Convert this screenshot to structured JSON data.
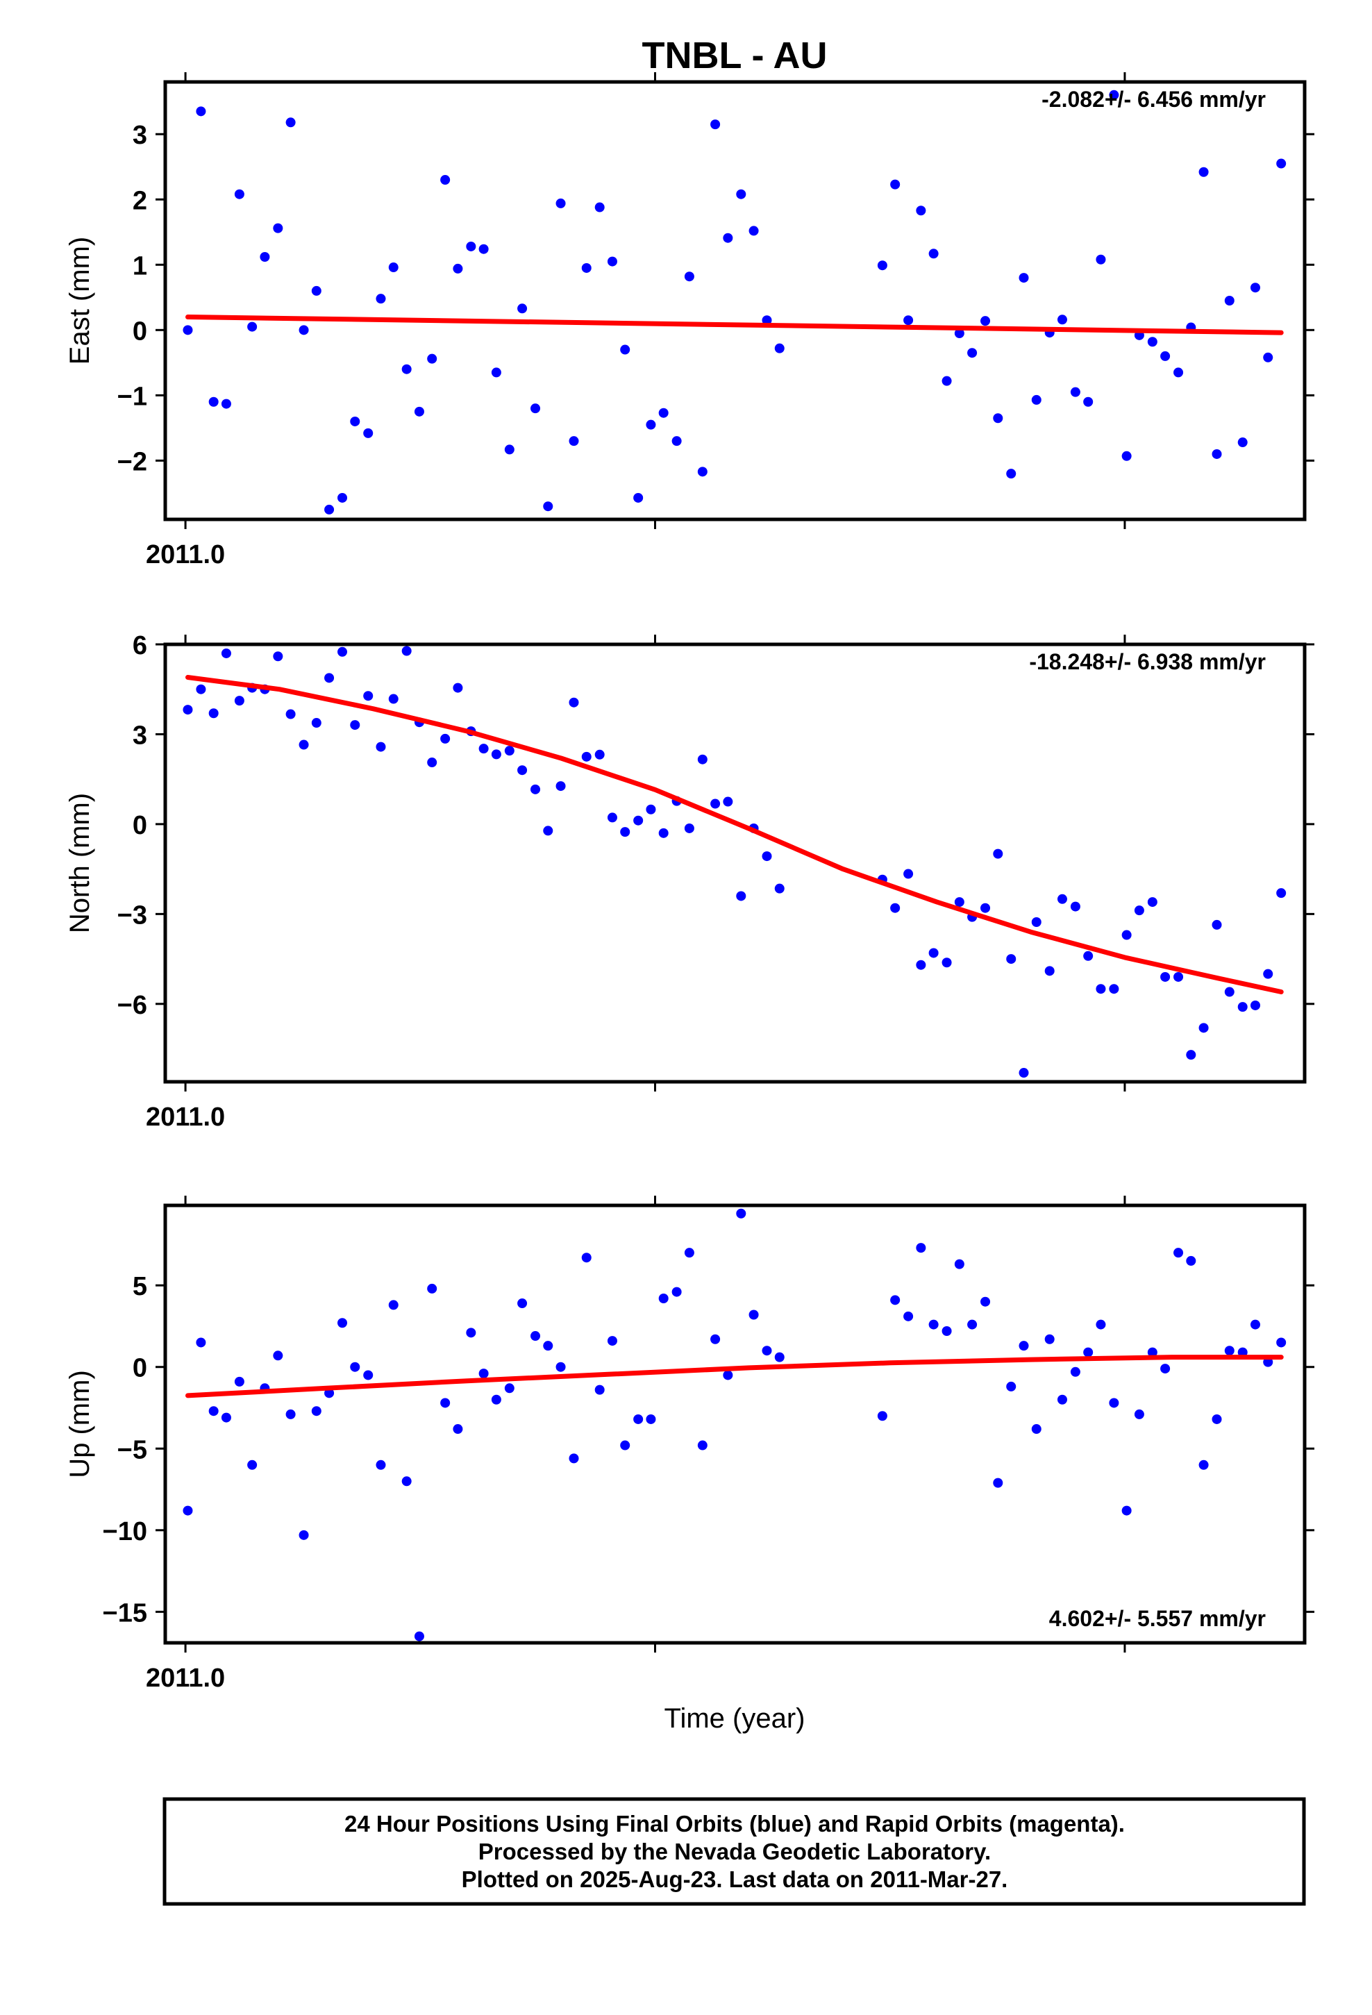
{
  "title": "TNBL - AU",
  "x_label": "Time (year)",
  "footer": {
    "line1": "24 Hour Positions Using Final Orbits (blue) and Rapid Orbits (magenta).",
    "line2": "Processed by the Nevada Geodetic Laboratory.",
    "line3": "Plotted on 2025-Aug-23. Last data on 2011-Mar-27."
  },
  "colors": {
    "points": "#0000ff",
    "fit": "#ff0000",
    "frame": "#000000"
  },
  "chart_data": [
    {
      "type": "scatter",
      "ylabel": "East (mm)",
      "rate": "-2.082+/- 6.456 mm/yr",
      "x_tick_label": "2011.0",
      "x_ticks": [
        2011.0,
        2011.1,
        2011.2
      ],
      "xlim": [
        2010.9957,
        2011.2383
      ],
      "ylim": [
        -2.9,
        3.8
      ],
      "yticks": [
        3,
        2,
        1,
        0,
        -1,
        -2
      ],
      "ytick_labels": [
        "3",
        "2",
        "1",
        "0",
        "−1",
        "−2"
      ],
      "x": [
        2011.0005,
        2011.0033,
        2011.006,
        2011.0087,
        2011.0115,
        2011.0142,
        2011.0169,
        2011.0197,
        2011.0224,
        2011.0252,
        2011.0279,
        2011.0306,
        2011.0334,
        2011.0361,
        2011.0389,
        2011.0416,
        2011.0443,
        2011.0471,
        2011.0498,
        2011.0525,
        2011.0553,
        2011.058,
        2011.0608,
        2011.0635,
        2011.0662,
        2011.069,
        2011.0717,
        2011.0745,
        2011.0772,
        2011.0799,
        2011.0827,
        2011.0854,
        2011.0882,
        2011.0909,
        2011.0936,
        2011.0964,
        2011.0991,
        2011.1018,
        2011.1046,
        2011.1073,
        2011.1101,
        2011.1128,
        2011.1155,
        2011.1183,
        2011.121,
        2011.1238,
        2011.1265,
        2011.1484,
        2011.1511,
        2011.1539,
        2011.1566,
        2011.1593,
        2011.1621,
        2011.1648,
        2011.1675,
        2011.1703,
        2011.173,
        2011.1758,
        2011.1785,
        2011.1812,
        2011.184,
        2011.1867,
        2011.1895,
        2011.1922,
        2011.1949,
        2011.1977,
        2011.2004,
        2011.2031,
        2011.2059,
        2011.2086,
        2011.2114,
        2011.2141,
        2011.2168,
        2011.2196,
        2011.2223,
        2011.2251,
        2011.2278,
        2011.2305,
        2011.2333
      ],
      "y": [
        0.0,
        3.35,
        -1.1,
        -1.13,
        2.08,
        0.05,
        1.12,
        1.56,
        3.18,
        0.0,
        0.6,
        -2.75,
        -2.57,
        -1.4,
        -1.58,
        0.48,
        0.96,
        -0.6,
        -1.25,
        -0.44,
        2.3,
        0.94,
        1.28,
        1.24,
        -0.65,
        -1.83,
        0.33,
        -1.2,
        -2.7,
        1.94,
        -1.7,
        0.95,
        1.88,
        1.05,
        -0.3,
        -2.57,
        -1.45,
        -1.27,
        -1.7,
        0.82,
        -2.17,
        3.15,
        1.41,
        2.08,
        1.52,
        0.15,
        -0.28,
        0.99,
        2.23,
        0.15,
        1.83,
        1.17,
        -0.78,
        -0.05,
        -0.35,
        0.14,
        -1.35,
        -2.2,
        0.8,
        -1.07,
        -0.04,
        0.16,
        -0.95,
        -1.1,
        1.08,
        3.6,
        -1.93,
        -0.08,
        -0.18,
        -0.4,
        -0.65,
        0.04,
        2.42,
        -1.9,
        0.45,
        -1.72,
        0.65,
        -0.42,
        2.55
      ],
      "fit": {
        "x": [
          2011.0005,
          2011.2333
        ],
        "y": [
          0.2,
          -0.04
        ]
      }
    },
    {
      "type": "scatter",
      "ylabel": "North (mm)",
      "rate": "-18.248+/- 6.938 mm/yr",
      "x_tick_label": "2011.0",
      "x_ticks": [
        2011.0,
        2011.1,
        2011.2
      ],
      "xlim": [
        2010.9957,
        2011.2383
      ],
      "ylim": [
        -8.6,
        6.0
      ],
      "yticks": [
        6,
        3,
        0,
        -3,
        -6
      ],
      "ytick_labels": [
        "6",
        "3",
        "0",
        "−3",
        "−6"
      ],
      "x": [
        2011.0005,
        2011.0033,
        2011.006,
        2011.0087,
        2011.0115,
        2011.0142,
        2011.0169,
        2011.0197,
        2011.0224,
        2011.0252,
        2011.0279,
        2011.0306,
        2011.0334,
        2011.0361,
        2011.0389,
        2011.0416,
        2011.0443,
        2011.0471,
        2011.0498,
        2011.0525,
        2011.0553,
        2011.058,
        2011.0608,
        2011.0635,
        2011.0662,
        2011.069,
        2011.0717,
        2011.0745,
        2011.0772,
        2011.0799,
        2011.0827,
        2011.0854,
        2011.0882,
        2011.0909,
        2011.0936,
        2011.0964,
        2011.0991,
        2011.1018,
        2011.1046,
        2011.1073,
        2011.1101,
        2011.1128,
        2011.1155,
        2011.1183,
        2011.121,
        2011.1238,
        2011.1265,
        2011.1484,
        2011.1511,
        2011.1539,
        2011.1566,
        2011.1593,
        2011.1621,
        2011.1648,
        2011.1675,
        2011.1703,
        2011.173,
        2011.1758,
        2011.1785,
        2011.1812,
        2011.184,
        2011.1867,
        2011.1895,
        2011.1922,
        2011.1949,
        2011.1977,
        2011.2004,
        2011.2031,
        2011.2059,
        2011.2086,
        2011.2114,
        2011.2141,
        2011.2168,
        2011.2196,
        2011.2223,
        2011.2251,
        2011.2278,
        2011.2305,
        2011.2333
      ],
      "y": [
        3.82,
        4.5,
        3.7,
        5.7,
        4.12,
        4.55,
        4.5,
        5.6,
        3.67,
        2.65,
        3.38,
        4.88,
        5.75,
        3.31,
        4.28,
        2.58,
        4.18,
        5.78,
        3.4,
        2.06,
        2.85,
        4.55,
        3.1,
        2.52,
        2.33,
        2.45,
        1.8,
        1.16,
        -0.22,
        1.27,
        4.06,
        2.25,
        2.32,
        0.22,
        -0.26,
        0.12,
        0.49,
        -0.3,
        0.77,
        -0.14,
        2.16,
        0.68,
        0.75,
        -2.4,
        -0.14,
        -1.07,
        -2.15,
        -1.85,
        -2.8,
        -1.66,
        -4.7,
        -4.3,
        -4.62,
        -2.6,
        -3.1,
        -2.8,
        -0.99,
        -4.5,
        -8.3,
        -3.27,
        -4.9,
        -2.5,
        -2.75,
        -4.4,
        -5.5,
        -5.5,
        -3.7,
        -2.88,
        -2.6,
        -5.1,
        -5.1,
        -7.7,
        -6.8,
        -3.36,
        -5.6,
        -6.1,
        -6.05,
        -5.0,
        -2.3
      ],
      "fit": {
        "x": [
          2011.0005,
          2011.02,
          2011.04,
          2011.06,
          2011.08,
          2011.1,
          2011.12,
          2011.14,
          2011.16,
          2011.18,
          2011.2,
          2011.22,
          2011.2333
        ],
        "y": [
          4.9,
          4.5,
          3.85,
          3.1,
          2.2,
          1.15,
          -0.15,
          -1.5,
          -2.6,
          -3.6,
          -4.45,
          -5.15,
          -5.6
        ]
      }
    },
    {
      "type": "scatter",
      "ylabel": "Up (mm)",
      "rate": "4.602+/- 5.557 mm/yr",
      "x_tick_label": "2011.0",
      "x_ticks": [
        2011.0,
        2011.1,
        2011.2
      ],
      "xlim": [
        2010.9957,
        2011.2383
      ],
      "ylim": [
        -16.9,
        9.9
      ],
      "yticks": [
        5,
        0,
        -5,
        -10,
        -15
      ],
      "ytick_labels": [
        "5",
        "0",
        "−5",
        "−10",
        "−15"
      ],
      "x": [
        2011.0005,
        2011.0033,
        2011.006,
        2011.0087,
        2011.0115,
        2011.0142,
        2011.0169,
        2011.0197,
        2011.0224,
        2011.0252,
        2011.0279,
        2011.0306,
        2011.0334,
        2011.0361,
        2011.0389,
        2011.0416,
        2011.0443,
        2011.0471,
        2011.0498,
        2011.0525,
        2011.0553,
        2011.058,
        2011.0608,
        2011.0635,
        2011.0662,
        2011.069,
        2011.0717,
        2011.0745,
        2011.0772,
        2011.0799,
        2011.0827,
        2011.0854,
        2011.0882,
        2011.0909,
        2011.0936,
        2011.0964,
        2011.0991,
        2011.1018,
        2011.1046,
        2011.1073,
        2011.1101,
        2011.1128,
        2011.1155,
        2011.1183,
        2011.121,
        2011.1238,
        2011.1265,
        2011.1484,
        2011.1511,
        2011.1539,
        2011.1566,
        2011.1593,
        2011.1621,
        2011.1648,
        2011.1675,
        2011.1703,
        2011.173,
        2011.1758,
        2011.1785,
        2011.1812,
        2011.184,
        2011.1867,
        2011.1895,
        2011.1922,
        2011.1949,
        2011.1977,
        2011.2004,
        2011.2031,
        2011.2059,
        2011.2086,
        2011.2114,
        2011.2141,
        2011.2168,
        2011.2196,
        2011.2223,
        2011.2251,
        2011.2278,
        2011.2305,
        2011.2333
      ],
      "y": [
        -8.8,
        1.5,
        -2.7,
        -3.1,
        -0.9,
        -6.0,
        -1.3,
        0.7,
        -2.9,
        -10.3,
        -2.7,
        -1.6,
        2.7,
        0.0,
        -0.5,
        -6.0,
        3.8,
        -7.0,
        -16.5,
        4.8,
        -2.2,
        -3.8,
        2.1,
        -0.4,
        -2.0,
        -1.3,
        3.9,
        1.9,
        1.3,
        0.0,
        -5.6,
        6.7,
        -1.4,
        1.6,
        -4.8,
        -3.2,
        -3.2,
        4.2,
        4.6,
        7.0,
        -4.8,
        1.7,
        -0.5,
        9.4,
        3.2,
        1.0,
        0.6,
        -3.0,
        4.1,
        3.1,
        7.3,
        2.6,
        2.2,
        6.3,
        2.6,
        4.0,
        -7.1,
        -1.2,
        1.3,
        -3.8,
        1.7,
        -2.0,
        -0.3,
        0.9,
        2.6,
        -2.2,
        -8.8,
        -2.9,
        0.9,
        -0.1,
        7.0,
        6.5,
        -6.0,
        -3.2,
        1.0,
        0.9,
        2.6,
        0.3,
        1.5
      ],
      "fit": {
        "x": [
          2011.0005,
          2011.03,
          2011.06,
          2011.09,
          2011.12,
          2011.15,
          2011.18,
          2011.21,
          2011.2333
        ],
        "y": [
          -1.75,
          -1.3,
          -0.85,
          -0.45,
          -0.05,
          0.25,
          0.45,
          0.6,
          0.6
        ]
      }
    }
  ]
}
